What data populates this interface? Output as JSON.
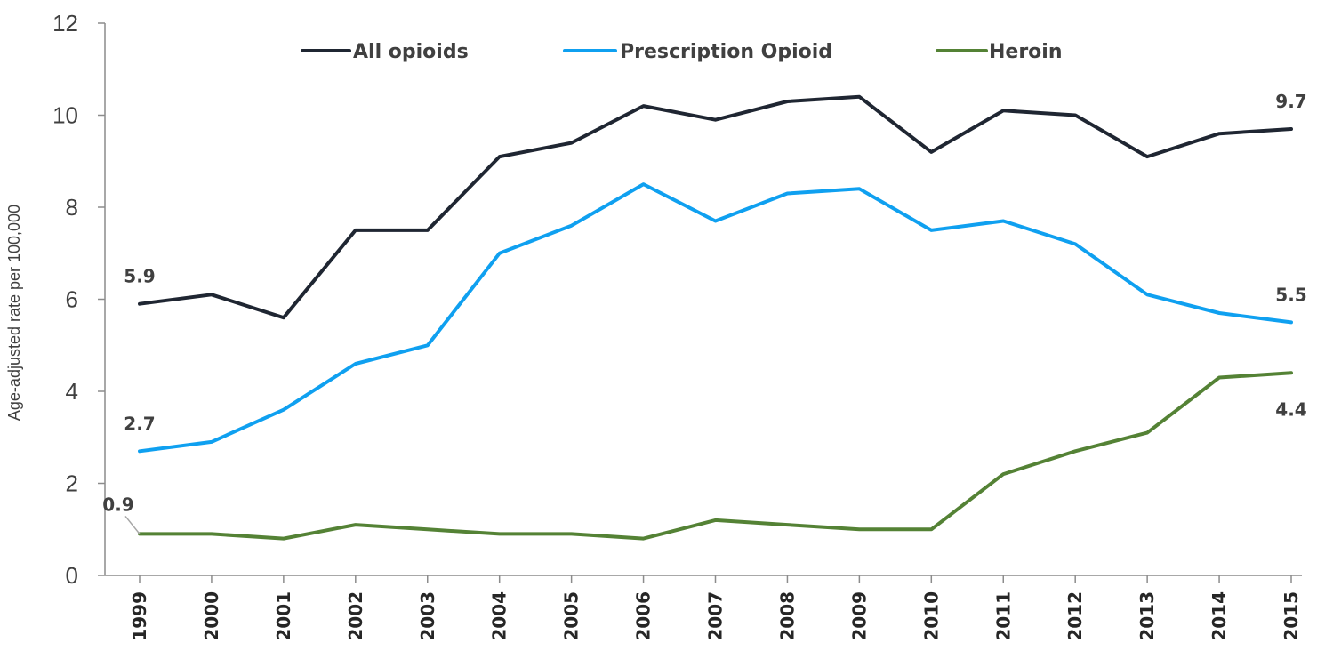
{
  "chart_data": {
    "type": "line",
    "ylabel": "Age-adjusted rate per 100,000",
    "xlabel": "",
    "ylim": [
      0,
      12
    ],
    "yticks": [
      0,
      2,
      4,
      6,
      8,
      10,
      12
    ],
    "categories": [
      "1999",
      "2000",
      "2001",
      "2002",
      "2003",
      "2004",
      "2005",
      "2006",
      "2007",
      "2008",
      "2009",
      "2010",
      "2011",
      "2012",
      "2013",
      "2014",
      "2015"
    ],
    "legend_position": "top",
    "series": [
      {
        "name": "All opioids",
        "color": "#1f2632",
        "values": [
          5.9,
          6.1,
          5.6,
          7.5,
          7.5,
          9.1,
          9.4,
          10.2,
          9.9,
          10.3,
          10.4,
          9.2,
          10.1,
          10.0,
          9.1,
          9.6,
          9.7
        ]
      },
      {
        "name": "Prescription Opioid",
        "color": "#0fa0f0",
        "values": [
          2.7,
          2.9,
          3.6,
          4.6,
          5.0,
          7.0,
          7.6,
          8.5,
          7.7,
          8.3,
          8.4,
          7.5,
          7.7,
          7.2,
          6.1,
          5.7,
          5.5
        ]
      },
      {
        "name": "Heroin",
        "color": "#548235",
        "values": [
          0.9,
          0.9,
          0.8,
          1.1,
          1.0,
          0.9,
          0.9,
          0.8,
          1.2,
          1.1,
          1.0,
          1.0,
          2.2,
          2.7,
          3.1,
          4.3,
          4.4
        ]
      }
    ],
    "data_labels": [
      {
        "series": "All opioids",
        "index": 0,
        "text": "5.9"
      },
      {
        "series": "All opioids",
        "index": 16,
        "text": "9.7"
      },
      {
        "series": "Prescription Opioid",
        "index": 0,
        "text": "2.7"
      },
      {
        "series": "Prescription Opioid",
        "index": 16,
        "text": "5.5"
      },
      {
        "series": "Heroin",
        "index": 0,
        "text": "0.9"
      },
      {
        "series": "Heroin",
        "index": 16,
        "text": "4.4"
      }
    ]
  }
}
